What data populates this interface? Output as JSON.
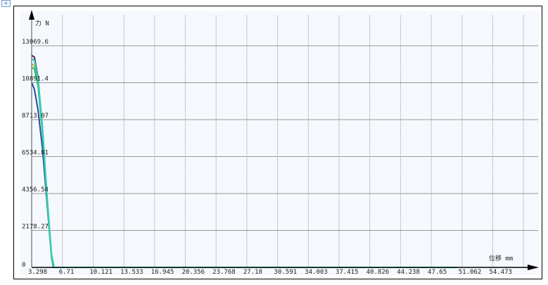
{
  "chart_data": {
    "type": "line",
    "xlabel": "位移 mm",
    "ylabel": "力 N",
    "xlim": [
      3.298,
      56.18
    ],
    "ylim": [
      0,
      13069.6
    ],
    "x_ticks": [
      "3.298",
      "6.71",
      "10.121",
      "13.533",
      "16.945",
      "20.356",
      "23.768",
      "27.18",
      "30.591",
      "34.003",
      "37.415",
      "40.826",
      "44.238",
      "47.65",
      "51.062",
      "54.473"
    ],
    "y_ticks": [
      "0",
      "2178.27",
      "4356.54",
      "6534.81",
      "8713.07",
      "10891.4",
      "13069.6"
    ],
    "grid": true,
    "series": [
      {
        "color": "#4a2a5a",
        "x": [
          3.298,
          3.6,
          4.0,
          4.5,
          5.0,
          5.5,
          5.75,
          50.5
        ],
        "y": [
          12500,
          12400,
          11200,
          8200,
          4200,
          700,
          0,
          0
        ]
      },
      {
        "color": "#2a4aa8",
        "x": [
          3.298,
          3.6,
          4.0,
          4.5,
          5.0,
          5.5,
          5.7,
          50.5
        ],
        "y": [
          10900,
          10500,
          9300,
          7000,
          3800,
          600,
          0,
          0
        ]
      },
      {
        "color": "#b8b040",
        "x": [
          3.298,
          3.6,
          4.0,
          4.5,
          5.0,
          5.5,
          5.75,
          50.5
        ],
        "y": [
          12000,
          11900,
          10900,
          8000,
          4100,
          600,
          0,
          0
        ]
      },
      {
        "color": "#30c060",
        "x": [
          3.298,
          3.6,
          4.0,
          4.5,
          5.0,
          5.5,
          5.75,
          50.5
        ],
        "y": [
          11800,
          11700,
          10700,
          7900,
          4050,
          600,
          0,
          0
        ]
      },
      {
        "color": "#30d0c0",
        "x": [
          3.298,
          3.6,
          4.0,
          4.5,
          5.0,
          5.5,
          5.8,
          50.5
        ],
        "y": [
          12300,
          12200,
          11100,
          8300,
          4300,
          800,
          0,
          0
        ]
      }
    ]
  }
}
